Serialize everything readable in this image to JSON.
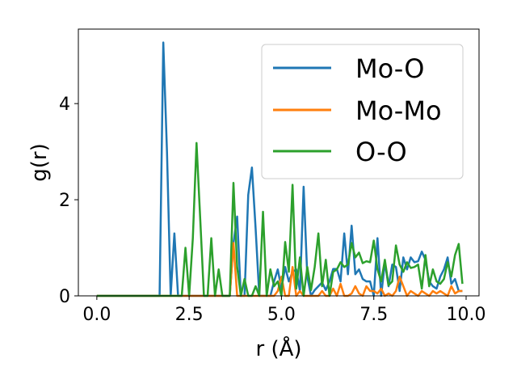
{
  "chart_data": {
    "type": "line",
    "xlabel": "r (Å)",
    "ylabel": "g(r)",
    "xlim": [
      -0.5,
      10.35
    ],
    "ylim": [
      0,
      5.55
    ],
    "x_ticks": [
      "0.0",
      "2.5",
      "5.0",
      "7.5",
      "10.0"
    ],
    "y_ticks": [
      "0",
      "2",
      "4"
    ],
    "grid": false,
    "legend_position": "top-right",
    "series": [
      {
        "name": "Mo-O",
        "color": "#1f77b4",
        "x": [
          0.0,
          1.7,
          1.8,
          1.9,
          2.0,
          2.1,
          2.2,
          2.3,
          2.4,
          3.6,
          3.7,
          3.8,
          3.9,
          4.0,
          4.1,
          4.2,
          4.3,
          4.4,
          4.5,
          4.6,
          4.7,
          4.8,
          4.9,
          5.0,
          5.1,
          5.2,
          5.3,
          5.4,
          5.5,
          5.6,
          5.7,
          5.8,
          5.9,
          6.0,
          6.1,
          6.2,
          6.3,
          6.4,
          6.5,
          6.6,
          6.7,
          6.8,
          6.9,
          7.0,
          7.1,
          7.2,
          7.3,
          7.4,
          7.5,
          7.6,
          7.7,
          7.8,
          7.9,
          8.0,
          8.1,
          8.2,
          8.3,
          8.4,
          8.5,
          8.6,
          8.7,
          8.8,
          8.9,
          9.0,
          9.1,
          9.2,
          9.3,
          9.4,
          9.5,
          9.6,
          9.7,
          9.8,
          9.9
        ],
        "y": [
          0,
          0,
          5.27,
          3.0,
          0,
          1.3,
          0,
          0,
          0,
          0,
          1.1,
          1.65,
          0,
          0,
          2.1,
          2.67,
          1.4,
          0,
          0,
          0,
          0,
          0.3,
          0.55,
          0.15,
          0.6,
          0.3,
          0.5,
          0.55,
          0.1,
          2.27,
          0.4,
          0,
          0.12,
          0.2,
          0.28,
          0.12,
          0.3,
          0.56,
          0.56,
          0.3,
          1.3,
          0.45,
          1.46,
          0.45,
          0.55,
          0.35,
          0.3,
          0.3,
          0,
          1.2,
          0,
          0.7,
          0.2,
          0.65,
          0.6,
          0.1,
          0.8,
          0.55,
          0.8,
          0.7,
          0.72,
          0.92,
          0.75,
          0.3,
          0.2,
          0.15,
          0.4,
          0.55,
          0.8,
          0.25,
          0.35,
          0.1,
          0.1
        ]
      },
      {
        "name": "Mo-Mo",
        "color": "#ff7f0e",
        "x": [
          0.0,
          3.5,
          3.6,
          3.7,
          3.8,
          3.9,
          4.8,
          4.9,
          5.0,
          5.1,
          5.2,
          5.3,
          5.4,
          5.5,
          5.6,
          5.7,
          5.8,
          5.9,
          6.0,
          6.1,
          6.2,
          6.3,
          6.4,
          6.5,
          6.6,
          6.7,
          6.8,
          6.9,
          7.0,
          7.1,
          7.2,
          7.3,
          7.4,
          7.5,
          7.6,
          7.7,
          7.8,
          7.9,
          8.0,
          8.1,
          8.2,
          8.3,
          8.4,
          8.5,
          8.6,
          8.7,
          8.8,
          8.9,
          9.0,
          9.1,
          9.2,
          9.3,
          9.4,
          9.5,
          9.6,
          9.7,
          9.8,
          9.9
        ],
        "y": [
          0,
          0,
          0,
          1.1,
          0,
          0,
          0,
          0.1,
          0.4,
          0,
          0,
          0.6,
          0,
          0.1,
          0,
          0,
          0,
          0,
          0,
          0.1,
          0,
          0,
          0.15,
          0,
          0.25,
          0,
          0,
          0.05,
          0.2,
          0.05,
          0,
          0.2,
          0.1,
          0.1,
          0.05,
          0.15,
          0,
          0.05,
          0,
          0.1,
          0.4,
          0.2,
          0,
          0.1,
          0.05,
          0,
          0.1,
          0.05,
          0,
          0.1,
          0.05,
          0.1,
          0.05,
          0,
          0.2,
          0.05,
          0.1,
          0.1
        ]
      },
      {
        "name": "O-O",
        "color": "#2ca02c",
        "x": [
          0.0,
          2.3,
          2.4,
          2.5,
          2.6,
          2.7,
          2.8,
          2.9,
          3.0,
          3.1,
          3.2,
          3.3,
          3.4,
          3.5,
          3.6,
          3.7,
          3.8,
          3.9,
          4.0,
          4.1,
          4.2,
          4.3,
          4.4,
          4.5,
          4.6,
          4.7,
          4.8,
          4.9,
          5.0,
          5.1,
          5.2,
          5.3,
          5.4,
          5.5,
          5.6,
          5.7,
          5.8,
          5.9,
          6.0,
          6.1,
          6.2,
          6.3,
          6.4,
          6.5,
          6.6,
          6.7,
          6.8,
          6.9,
          7.0,
          7.1,
          7.2,
          7.3,
          7.4,
          7.5,
          7.6,
          7.7,
          7.8,
          7.9,
          8.0,
          8.1,
          8.2,
          8.3,
          8.4,
          8.5,
          8.6,
          8.7,
          8.8,
          8.9,
          9.0,
          9.1,
          9.2,
          9.3,
          9.4,
          9.5,
          9.6,
          9.7,
          9.8,
          9.9
        ],
        "y": [
          0,
          0,
          1.0,
          0,
          1.2,
          3.18,
          1.6,
          0,
          0,
          1.2,
          0,
          0.55,
          0,
          0,
          0,
          2.35,
          0.6,
          0,
          0.35,
          0,
          0,
          0.2,
          0,
          1.75,
          0,
          0.55,
          0.2,
          0.3,
          0,
          1.12,
          0.5,
          2.31,
          0.15,
          0.8,
          0,
          0.6,
          0.12,
          0.6,
          1.3,
          0.2,
          0.75,
          0,
          0.5,
          0.55,
          0.7,
          0.6,
          0.65,
          1.1,
          0.8,
          0.9,
          0.68,
          0.72,
          0.7,
          1.15,
          0.55,
          0.3,
          0.75,
          0.22,
          0.3,
          1.05,
          0.65,
          0.5,
          0.7,
          0.58,
          0.6,
          0.65,
          0.15,
          0.85,
          0.2,
          0.55,
          0.3,
          0.25,
          0.35,
          0.7,
          0.4,
          0.85,
          1.08,
          0.25
        ]
      }
    ]
  }
}
